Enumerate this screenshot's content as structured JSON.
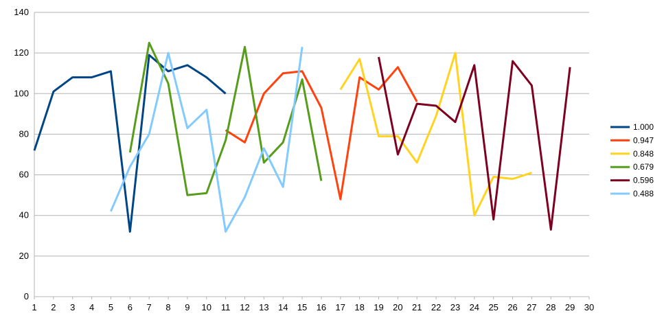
{
  "chart_data": {
    "type": "line",
    "title": "",
    "xlabel": "",
    "ylabel": "",
    "xlim": [
      1,
      30
    ],
    "ylim": [
      0,
      140
    ],
    "x_ticks": [
      "1",
      "2",
      "3",
      "4",
      "5",
      "6",
      "7",
      "8",
      "9",
      "10",
      "11",
      "12",
      "13",
      "14",
      "15",
      "16",
      "17",
      "18",
      "19",
      "20",
      "21",
      "22",
      "23",
      "24",
      "25",
      "26",
      "27",
      "28",
      "29",
      "30"
    ],
    "y_ticks": [
      "0",
      "20",
      "40",
      "60",
      "80",
      "100",
      "120",
      "140"
    ],
    "grid": "horizontal",
    "legend_position": "right",
    "series": [
      {
        "name": "1.000",
        "color": "#004586",
        "points": [
          [
            1,
            72
          ],
          [
            2,
            101
          ],
          [
            3,
            108
          ],
          [
            4,
            108
          ],
          [
            5,
            111
          ],
          [
            6,
            32
          ],
          [
            7,
            119
          ],
          [
            8,
            111
          ],
          [
            9,
            114
          ],
          [
            10,
            108
          ],
          [
            11,
            100
          ]
        ]
      },
      {
        "name": "0.947",
        "color": "#ff420e",
        "points": [
          [
            11,
            82
          ],
          [
            12,
            76
          ],
          [
            13,
            100
          ],
          [
            14,
            110
          ],
          [
            15,
            111
          ],
          [
            16,
            93
          ],
          [
            17,
            48
          ],
          [
            18,
            108
          ],
          [
            19,
            102
          ],
          [
            20,
            113
          ],
          [
            21,
            96
          ]
        ]
      },
      {
        "name": "0.848",
        "color": "#ffd320",
        "points": [
          [
            17,
            102
          ],
          [
            18,
            117
          ],
          [
            19,
            79
          ],
          [
            20,
            79
          ],
          [
            21,
            66
          ],
          [
            22,
            89
          ],
          [
            23,
            120
          ],
          [
            24,
            40
          ],
          [
            25,
            59
          ],
          [
            26,
            58
          ],
          [
            27,
            61
          ]
        ]
      },
      {
        "name": "0.679",
        "color": "#579d1c",
        "points": [
          [
            6,
            71
          ],
          [
            7,
            125
          ],
          [
            8,
            105
          ],
          [
            9,
            50
          ],
          [
            10,
            51
          ],
          [
            11,
            77
          ],
          [
            12,
            123
          ],
          [
            13,
            66
          ],
          [
            14,
            76
          ],
          [
            15,
            107
          ],
          [
            16,
            57
          ]
        ]
      },
      {
        "name": "0.596",
        "color": "#7e0021",
        "points": [
          [
            19,
            118
          ],
          [
            20,
            70
          ],
          [
            21,
            95
          ],
          [
            22,
            94
          ],
          [
            23,
            86
          ],
          [
            24,
            114
          ],
          [
            25,
            38
          ],
          [
            26,
            116
          ],
          [
            27,
            104
          ],
          [
            28,
            33
          ],
          [
            29,
            113
          ]
        ]
      },
      {
        "name": "0.488",
        "color": "#83caff",
        "points": [
          [
            5,
            42
          ],
          [
            6,
            64
          ],
          [
            7,
            80
          ],
          [
            8,
            120
          ],
          [
            9,
            83
          ],
          [
            10,
            92
          ],
          [
            11,
            32
          ],
          [
            12,
            49
          ],
          [
            13,
            73
          ],
          [
            14,
            54
          ],
          [
            15,
            123
          ]
        ]
      }
    ]
  }
}
